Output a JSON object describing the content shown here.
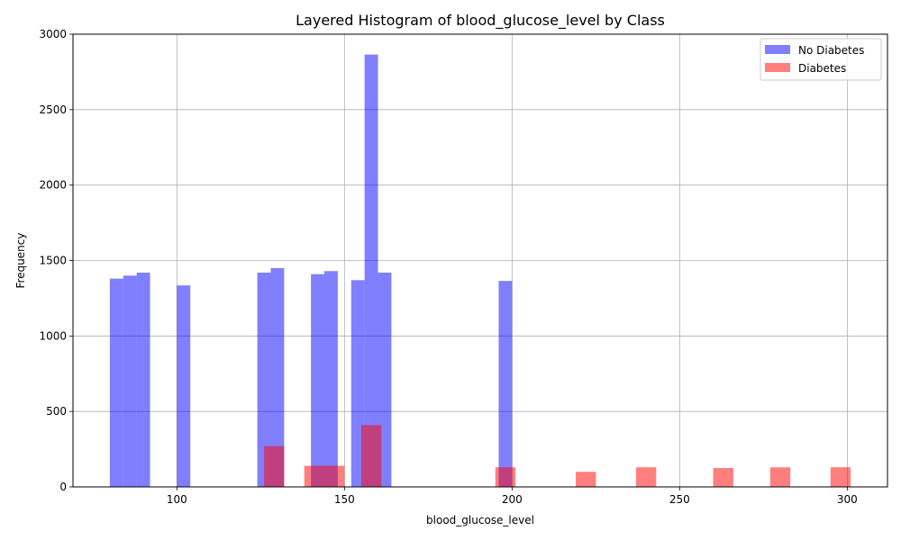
{
  "chart_data": {
    "type": "bar",
    "title": "Layered Histogram of blood_glucose_level by Class",
    "xlabel": "blood_glucose_level",
    "ylabel": "Frequency",
    "xlim": [
      69,
      312
    ],
    "ylim": [
      0,
      3000
    ],
    "x_ticks": [
      100,
      150,
      200,
      250,
      300
    ],
    "y_ticks": [
      0,
      500,
      1000,
      1500,
      2000,
      2500,
      3000
    ],
    "grid": true,
    "legend_position": "top-right",
    "series": [
      {
        "name": "No Diabetes",
        "color": "#0000ff",
        "opacity": 0.5,
        "bins": [
          {
            "x0": 80,
            "x1": 84,
            "value": 1380
          },
          {
            "x0": 84,
            "x1": 88,
            "value": 1400
          },
          {
            "x0": 88,
            "x1": 92,
            "value": 1420
          },
          {
            "x0": 100,
            "x1": 104,
            "value": 1335
          },
          {
            "x0": 124,
            "x1": 128,
            "value": 1420
          },
          {
            "x0": 128,
            "x1": 132,
            "value": 1450
          },
          {
            "x0": 140,
            "x1": 144,
            "value": 1410
          },
          {
            "x0": 144,
            "x1": 148,
            "value": 1430
          },
          {
            "x0": 152,
            "x1": 156,
            "value": 1370
          },
          {
            "x0": 156,
            "x1": 160,
            "value": 2865
          },
          {
            "x0": 160,
            "x1": 164,
            "value": 1420
          },
          {
            "x0": 196,
            "x1": 200,
            "value": 1365
          }
        ]
      },
      {
        "name": "Diabetes",
        "color": "#ff0000",
        "opacity": 0.5,
        "bins": [
          {
            "x0": 126,
            "x1": 132,
            "value": 270
          },
          {
            "x0": 138,
            "x1": 144,
            "value": 140
          },
          {
            "x0": 144,
            "x1": 150,
            "value": 140
          },
          {
            "x0": 155,
            "x1": 161,
            "value": 410
          },
          {
            "x0": 195,
            "x1": 201,
            "value": 130
          },
          {
            "x0": 219,
            "x1": 225,
            "value": 100
          },
          {
            "x0": 237,
            "x1": 243,
            "value": 130
          },
          {
            "x0": 260,
            "x1": 266,
            "value": 125
          },
          {
            "x0": 277,
            "x1": 283,
            "value": 130
          },
          {
            "x0": 295,
            "x1": 301,
            "value": 130
          }
        ]
      }
    ]
  }
}
